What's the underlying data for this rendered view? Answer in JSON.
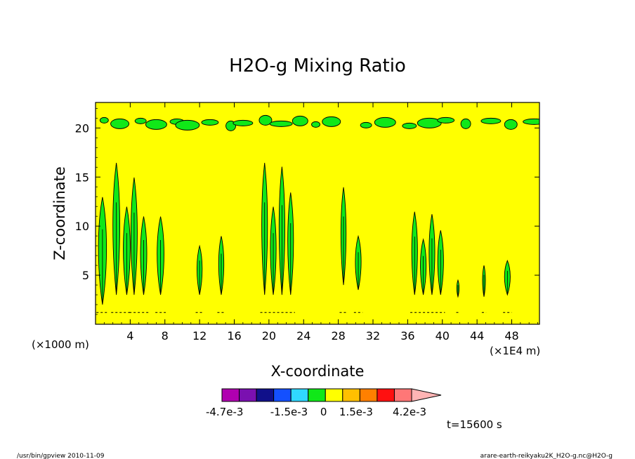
{
  "chart_data": {
    "type": "heatmap",
    "title": "H2O-g Mixing Ratio",
    "xlabel": "X-coordinate",
    "ylabel": "Z-coordinate",
    "x_unit_note": "(×1E4 m)",
    "y_unit_note": "(×1000 m)",
    "x_ticks": [
      4,
      8,
      12,
      16,
      20,
      24,
      28,
      32,
      36,
      40,
      44,
      48
    ],
    "y_ticks": [
      5,
      10,
      15,
      20
    ],
    "xlim": [
      0,
      51.2
    ],
    "ylim": [
      0,
      22.6
    ],
    "background_value_band": "0 to 1.5e-3",
    "anomaly_regions": [
      {
        "x": 0.8,
        "z_bottom": 2,
        "z_top": 13,
        "width": 1.4
      },
      {
        "x": 3.0,
        "z_bottom": 3,
        "z_top": 16.5,
        "width": 2.4
      },
      {
        "x": 5.0,
        "z_bottom": 3,
        "z_top": 15,
        "width": 2.2
      },
      {
        "x": 7.5,
        "z_bottom": 3,
        "z_top": 11,
        "width": 1.2
      },
      {
        "x": 12.0,
        "z_bottom": 3,
        "z_top": 8,
        "width": 0.9
      },
      {
        "x": 14.5,
        "z_bottom": 3,
        "z_top": 9,
        "width": 0.9
      },
      {
        "x": 21.0,
        "z_bottom": 3,
        "z_top": 16.5,
        "width": 4.0
      },
      {
        "x": 28.6,
        "z_bottom": 4,
        "z_top": 14,
        "width": 0.9
      },
      {
        "x": 30.3,
        "z_bottom": 3.5,
        "z_top": 9,
        "width": 1.0
      },
      {
        "x": 38.3,
        "z_bottom": 3,
        "z_top": 11.5,
        "width": 4.0
      },
      {
        "x": 41.8,
        "z_bottom": 2.8,
        "z_top": 4.5,
        "width": 0.4
      },
      {
        "x": 44.8,
        "z_bottom": 2.8,
        "z_top": 6,
        "width": 0.5
      },
      {
        "x": 47.5,
        "z_bottom": 3,
        "z_top": 6.5,
        "width": 1.0
      }
    ],
    "upper_layer_z": 20.5,
    "colorbar": {
      "colors": [
        "#b000b0",
        "#7a10b0",
        "#10108a",
        "#1450ff",
        "#30d8ff",
        "#10e818",
        "#ffff00",
        "#ffc000",
        "#ff8000",
        "#ff1010",
        "#ff7777",
        "#ffb4b4"
      ],
      "labels": [
        "-4.7e-3",
        "-1.5e-3",
        "0",
        "1.5e-3",
        "4.2e-3"
      ]
    }
  },
  "annotations": {
    "time_label": "t=15600 s",
    "footer_left": "/usr/bin/gpview  2010-11-09",
    "footer_right": "arare-earth-reikyaku2K_H2O-g.nc@H2O-g"
  },
  "colors": {
    "background_fill": "#ffff00",
    "positive_fill": "#10e818",
    "contour_stroke": "#000000"
  }
}
